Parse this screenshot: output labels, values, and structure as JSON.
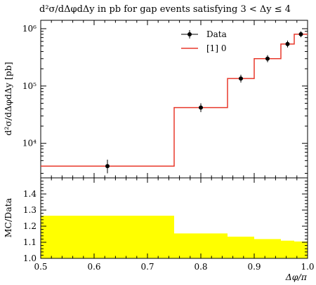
{
  "chart_data": [
    {
      "type": "line",
      "title": "d²σ/dΔφdΔy in pb for gap events satisfying 3 < Δy ≤ 4",
      "ylabel": "d²σ/dΔφdΔy [pb]",
      "xlabel": "Δφ/π",
      "yscale": "log",
      "xlim": [
        0.5,
        1.0
      ],
      "ylim": [
        2500,
        1400000
      ],
      "y_ticks_major": [
        {
          "value": 10000,
          "label": "10⁴"
        },
        {
          "value": 100000,
          "label": "10⁵"
        },
        {
          "value": 1000000,
          "label": "10⁶"
        }
      ],
      "legend_position": "top-right",
      "series": [
        {
          "name": "Data",
          "style": "points-with-errorbars",
          "color": "#000000",
          "x": [
            0.625,
            0.8,
            0.875,
            0.925,
            0.9625,
            0.9875
          ],
          "y": [
            4000,
            42000,
            135000,
            300000,
            540000,
            800000
          ],
          "yerr_low": [
            1000,
            7000,
            20000,
            40000,
            70000,
            90000
          ],
          "yerr_high": [
            1200,
            8000,
            22000,
            45000,
            80000,
            100000
          ]
        },
        {
          "name": "[1] 0",
          "style": "step",
          "color": "#e8382b",
          "bin_edges": [
            0.5,
            0.75,
            0.85,
            0.9,
            0.95,
            0.975,
            1.0
          ],
          "values": [
            4000,
            42000,
            135000,
            300000,
            540000,
            800000
          ]
        }
      ]
    },
    {
      "type": "area",
      "ylabel": "MC/Data",
      "xlabel": "Δφ/π",
      "xlim": [
        0.5,
        1.0
      ],
      "ylim": [
        1.0,
        1.5
      ],
      "x_ticks": [
        0.5,
        0.6,
        0.7,
        0.8,
        0.9,
        1.0
      ],
      "x_tick_labels": [
        "0.5",
        "0.6",
        "0.7",
        "0.8",
        "0.9",
        "1.0"
      ],
      "y_ticks": [
        1.0,
        1.1,
        1.2,
        1.3,
        1.4
      ],
      "y_tick_labels": [
        "1.0",
        "1.1",
        "1.2",
        "1.3",
        "1.4"
      ],
      "fill_color": "#ffff00",
      "bin_edges": [
        0.5,
        0.75,
        0.85,
        0.9,
        0.95,
        0.975,
        1.0
      ],
      "band_low": [
        1.0,
        1.0,
        1.0,
        1.0,
        1.0,
        1.0
      ],
      "band_high": [
        1.265,
        1.155,
        1.135,
        1.12,
        1.11,
        1.105
      ]
    }
  ]
}
